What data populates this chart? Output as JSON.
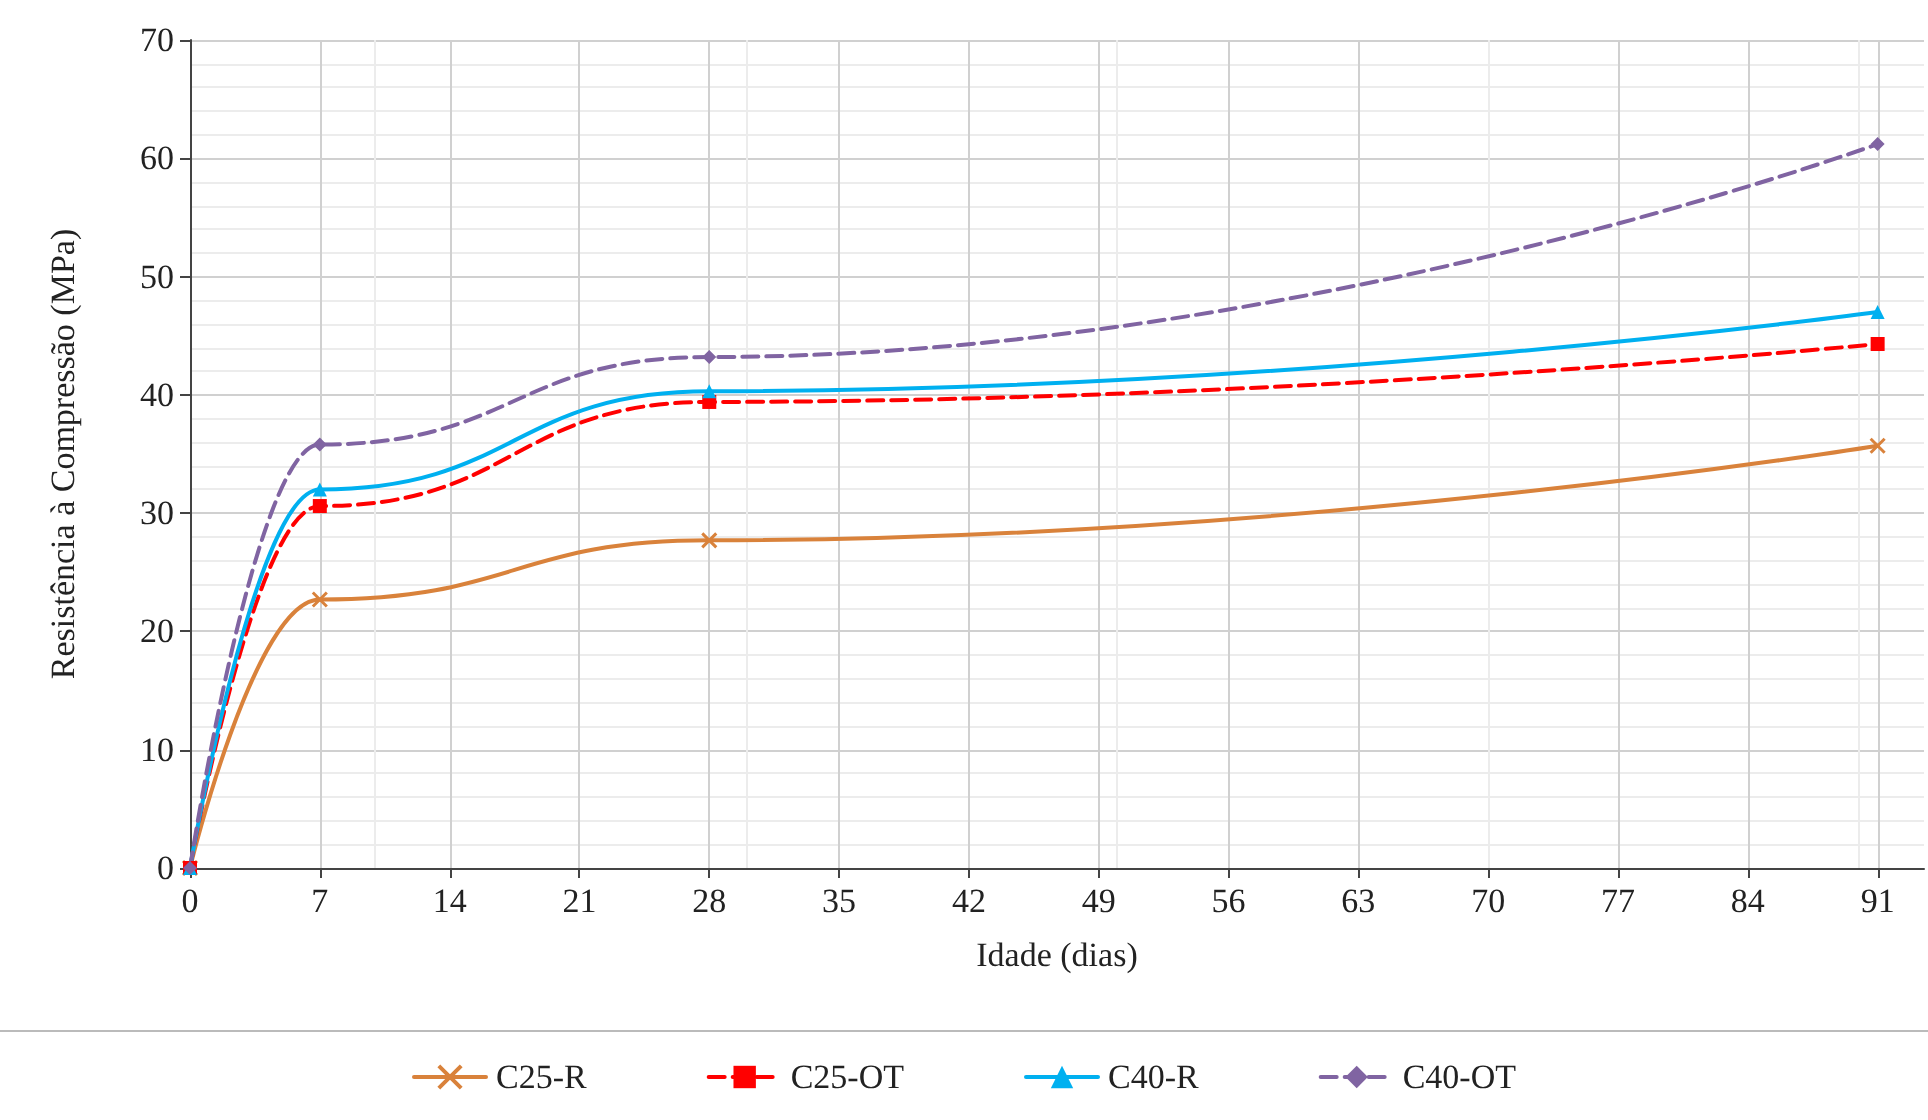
{
  "chart_data": {
    "type": "line",
    "xlabel": "Idade (dias)",
    "ylabel": "Resistência à Compressão (MPa)",
    "x": [
      0,
      7,
      28,
      91
    ],
    "xlim": [
      0,
      93.5
    ],
    "xticks": [
      0,
      7,
      14,
      21,
      28,
      35,
      42,
      49,
      56,
      63,
      70,
      77,
      84,
      91
    ],
    "ylim": [
      0,
      70
    ],
    "yticks": [
      0,
      10,
      20,
      30,
      40,
      50,
      60,
      70
    ],
    "grid": true,
    "legend": "bottom",
    "series": [
      {
        "name": "C25-R",
        "color": "#d9823b",
        "values": [
          0,
          22.7,
          27.7,
          35.7
        ],
        "marker": "cross",
        "line_style": "solid"
      },
      {
        "name": "C25-OT",
        "color": "#ff0000",
        "values": [
          0,
          30.6,
          39.4,
          44.3
        ],
        "marker": "square",
        "line_style": "dashed"
      },
      {
        "name": "C40-R",
        "color": "#00b0f0",
        "values": [
          0,
          32,
          40.3,
          47
        ],
        "marker": "triangle",
        "line_style": "solid"
      },
      {
        "name": "C40-OT",
        "color": "#8064a2",
        "values": [
          0,
          35.8,
          43.2,
          61.2
        ],
        "marker": "diamond",
        "line_style": "dashed"
      }
    ]
  }
}
